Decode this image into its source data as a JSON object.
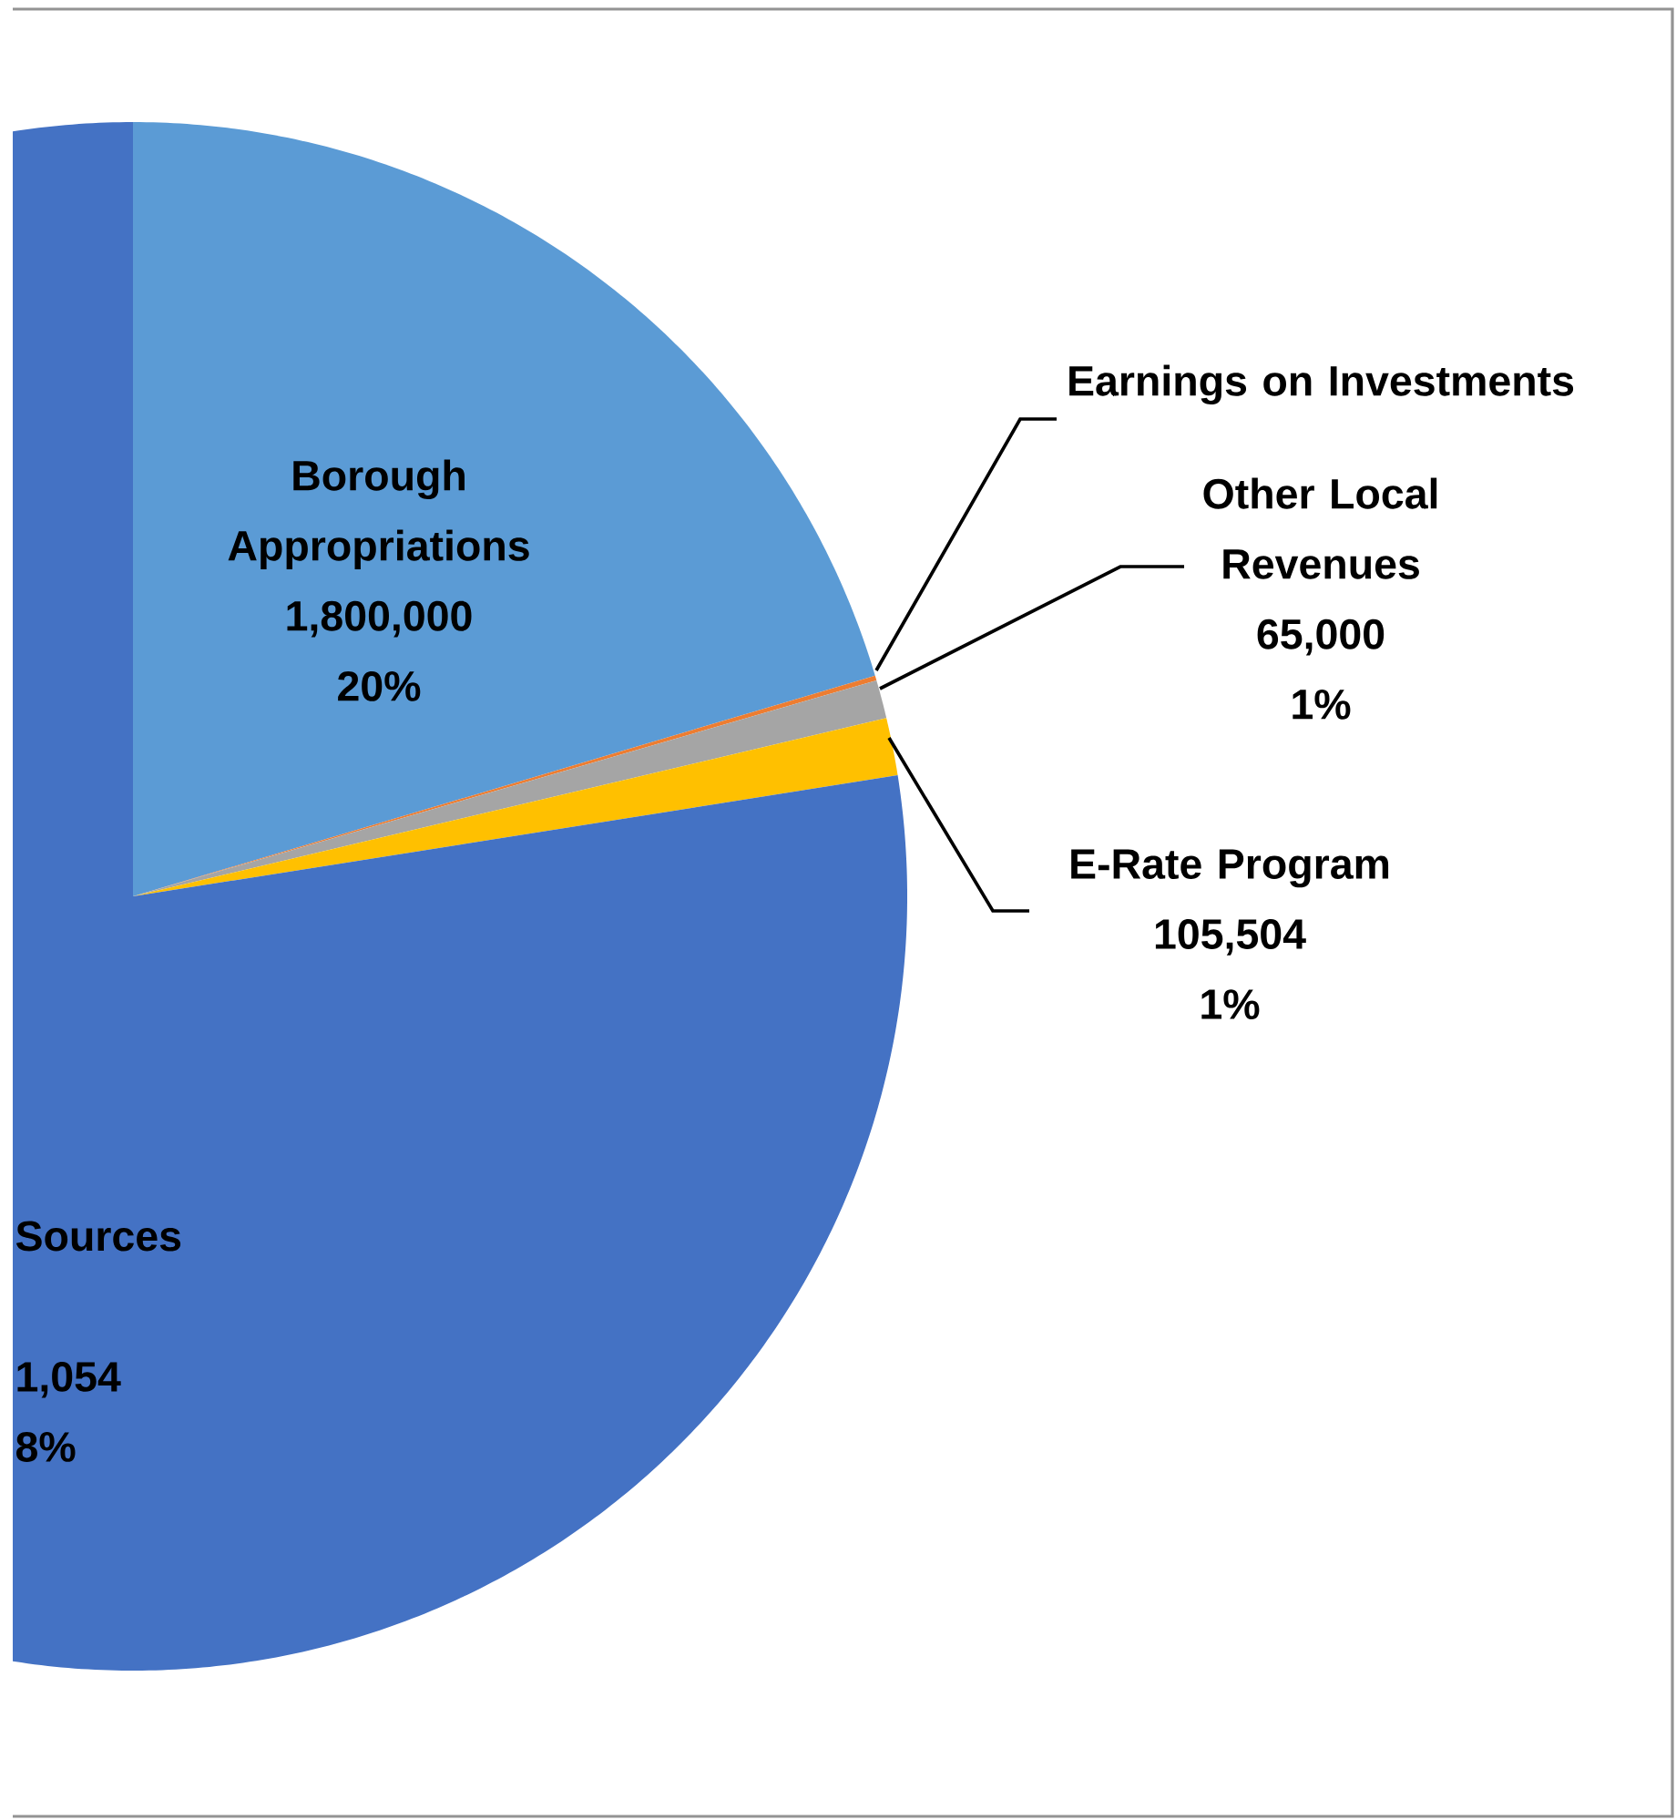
{
  "chart_data": {
    "type": "pie",
    "categories": [
      "Borough Appropriations",
      "Earnings on Investments",
      "Other Local Revenues",
      "E-Rate Program",
      "Sources"
    ],
    "values": [
      20.4,
      0.1,
      0.8,
      1.2,
      77.5
    ],
    "colors": [
      "#5b9bd5",
      "#ed7d31",
      "#a5a5a5",
      "#ffc000",
      "#4472c4"
    ],
    "value_labels": [
      [
        "1,800,000",
        "20%"
      ],
      null,
      [
        "65,000",
        "1%"
      ],
      [
        "105,504",
        "1%"
      ],
      [
        "1,054",
        "8%"
      ]
    ]
  }
}
